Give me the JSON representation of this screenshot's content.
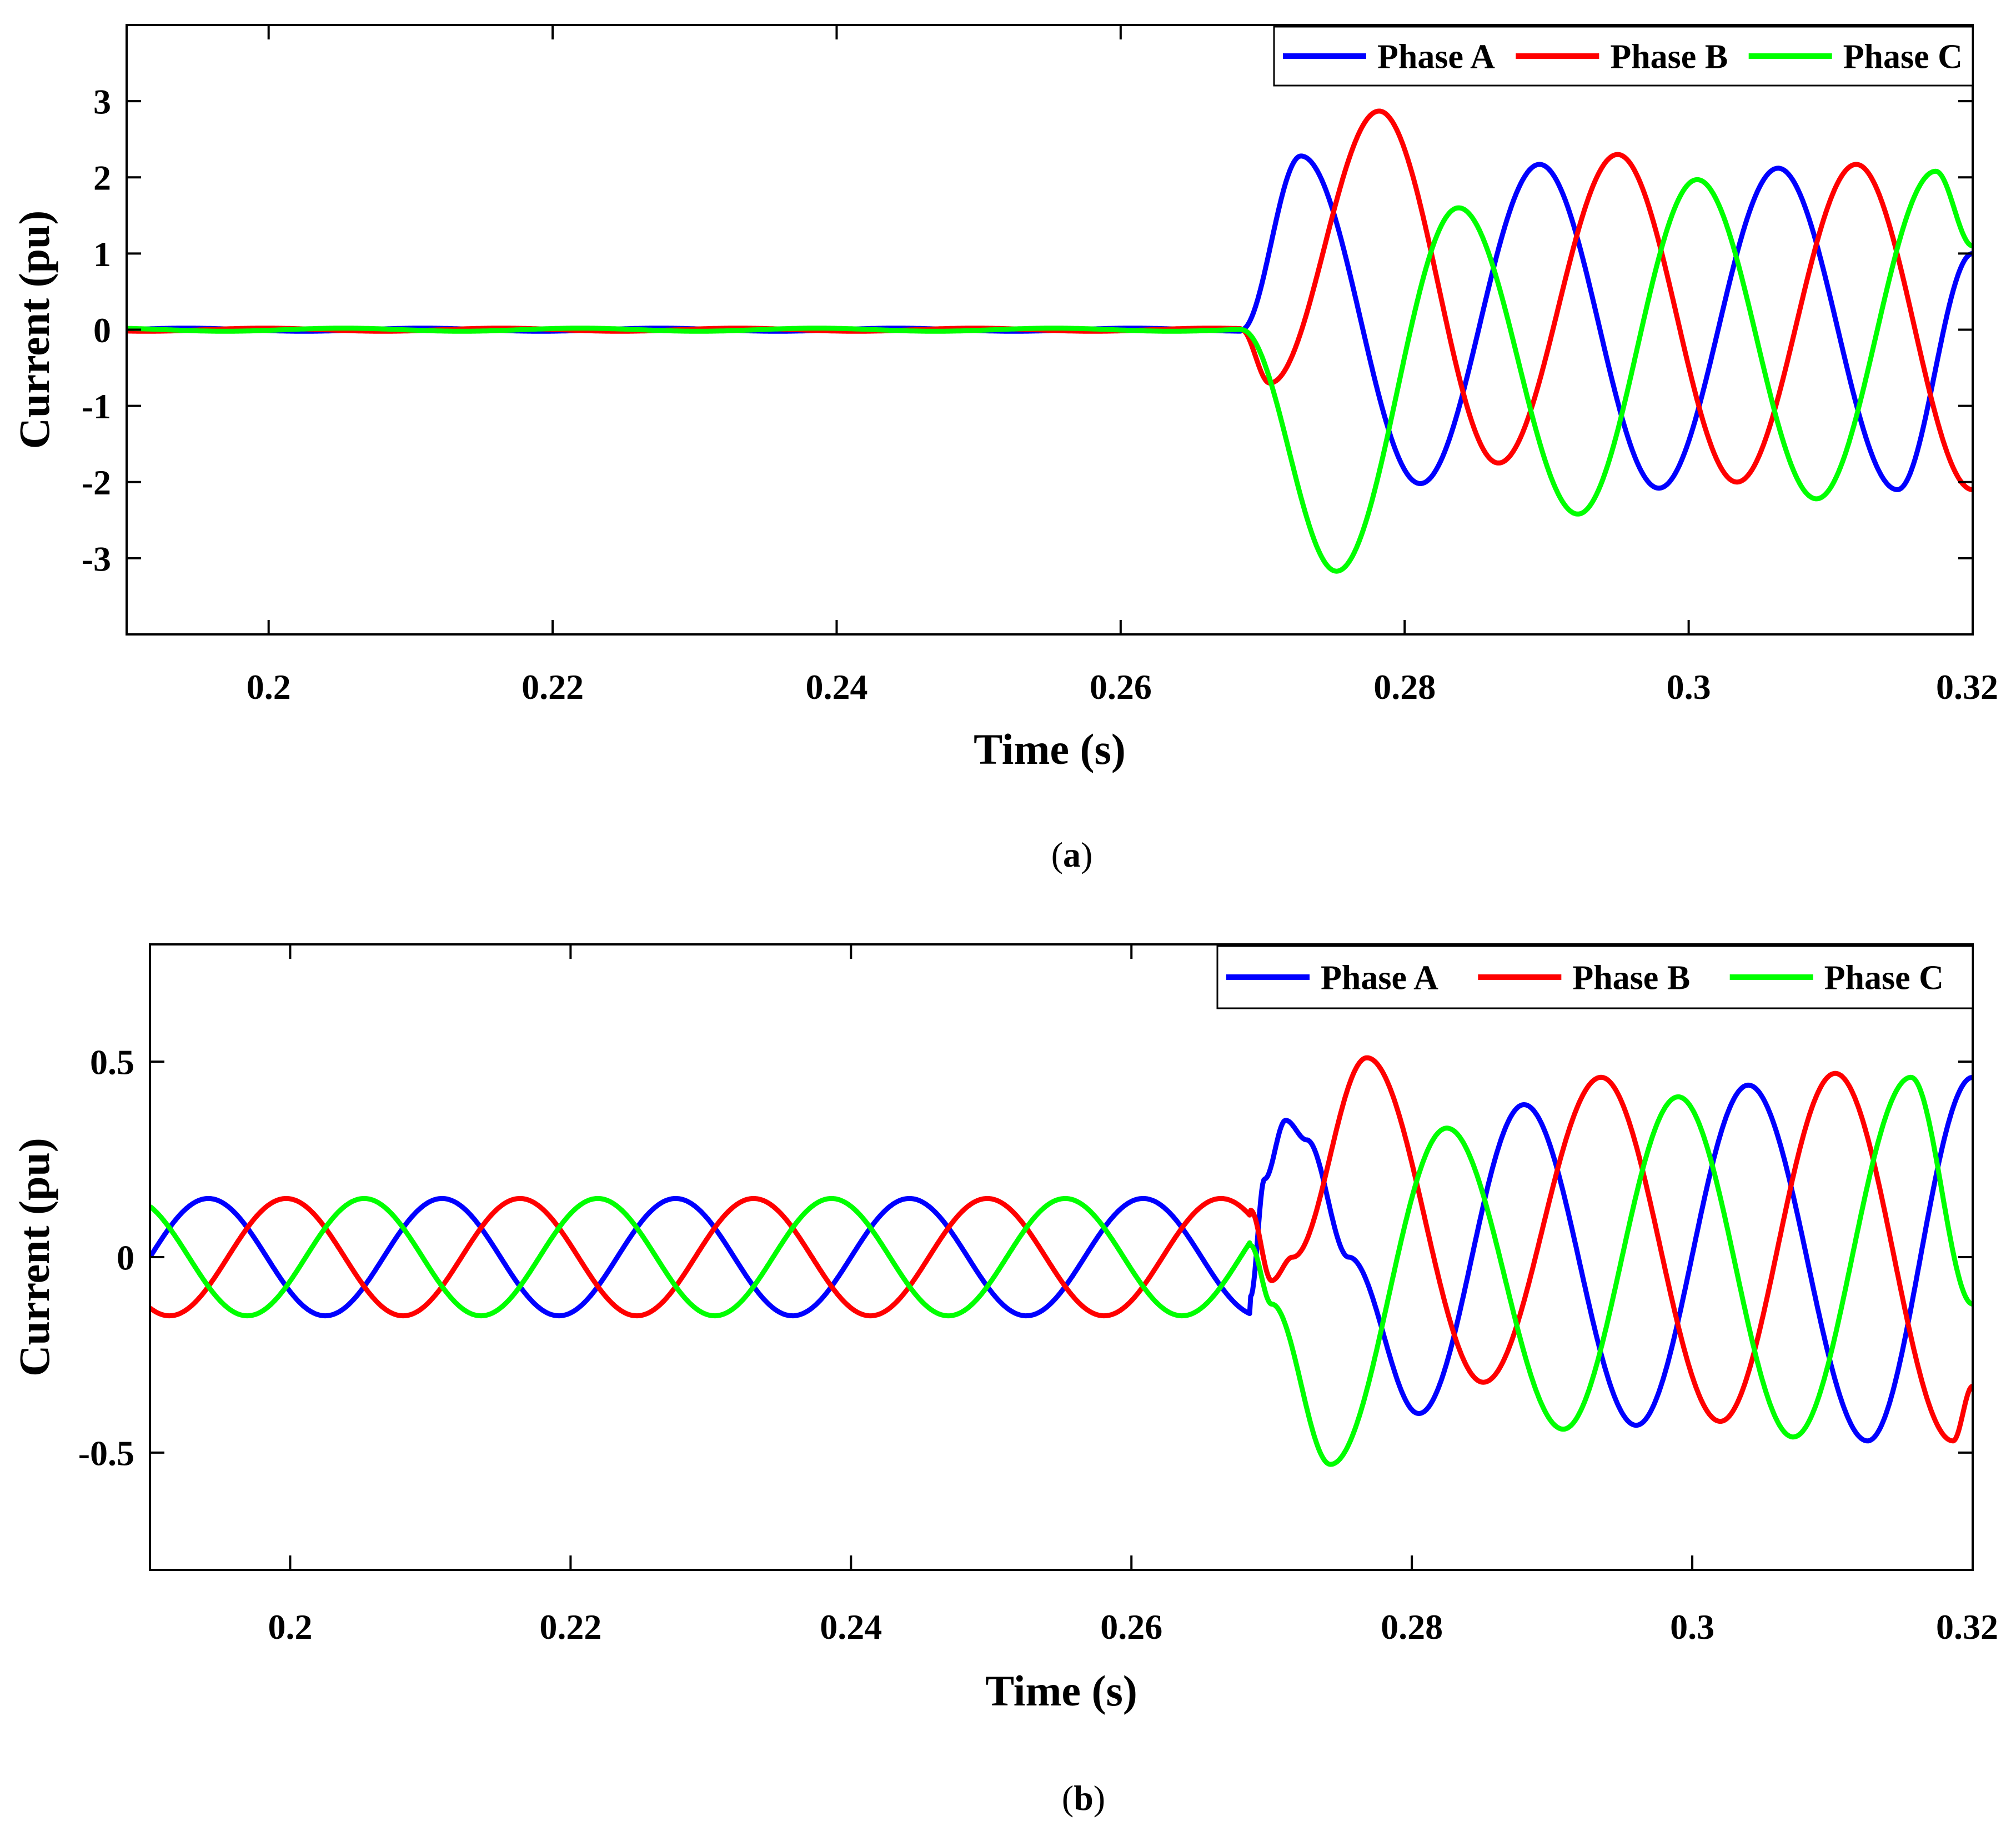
{
  "chart_data": [
    {
      "id": "a",
      "type": "line",
      "caption_open": "(",
      "caption_letter": "a",
      "caption_close": ")",
      "xlabel": "Time (s)",
      "ylabel": "Current (pu)",
      "xlim": [
        0.19,
        0.32
      ],
      "ylim": [
        -4,
        4
      ],
      "xticks": [
        0.2,
        0.22,
        0.24,
        0.26,
        0.28,
        0.3,
        0.32
      ],
      "xtick_labels": [
        "0.2",
        "0.22",
        "0.24",
        "0.26",
        "0.28",
        "0.3",
        "0.32"
      ],
      "yticks": [
        3,
        2,
        1,
        0,
        -1,
        -2,
        -3
      ],
      "ytick_labels": [
        "3",
        "2",
        "1",
        "0",
        "-1",
        "-2",
        "-3"
      ],
      "legend_position": "top-right",
      "fault_time": 0.2685,
      "frequency_hz": 60,
      "series": [
        {
          "name": "Phase A",
          "color": "#0000ff",
          "pre_fault_amplitude": 0.02,
          "pre_fault_phase_deg": 0,
          "post_fault_points": [
            [
              0.2685,
              0.0
            ],
            [
              0.2727,
              2.28
            ],
            [
              0.2811,
              -2.02
            ],
            [
              0.2895,
              2.17
            ],
            [
              0.2979,
              -2.08
            ],
            [
              0.3063,
              2.12
            ],
            [
              0.3147,
              -2.1
            ],
            [
              0.32,
              1.0
            ]
          ]
        },
        {
          "name": "Phase B",
          "color": "#ff0000",
          "pre_fault_amplitude": 0.02,
          "pre_fault_phase_deg": -120,
          "post_fault_points": [
            [
              0.2685,
              0.0
            ],
            [
              0.2705,
              -0.7
            ],
            [
              0.2782,
              2.87
            ],
            [
              0.2866,
              -1.75
            ],
            [
              0.295,
              2.3
            ],
            [
              0.3034,
              -2.0
            ],
            [
              0.3118,
              2.17
            ],
            [
              0.32,
              -2.1
            ]
          ]
        },
        {
          "name": "Phase C",
          "color": "#00ff00",
          "pre_fault_amplitude": 0.02,
          "pre_fault_phase_deg": 120,
          "post_fault_points": [
            [
              0.2685,
              0.0
            ],
            [
              0.2752,
              -3.17
            ],
            [
              0.2838,
              1.6
            ],
            [
              0.2922,
              -2.42
            ],
            [
              0.3006,
              1.97
            ],
            [
              0.309,
              -2.22
            ],
            [
              0.3174,
              2.08
            ],
            [
              0.32,
              1.1
            ]
          ]
        }
      ]
    },
    {
      "id": "b",
      "type": "line",
      "caption_open": "(",
      "caption_letter": "b",
      "caption_close": ")",
      "xlabel": "Time (s)",
      "ylabel": "Current (pu)",
      "xlim": [
        0.19,
        0.32
      ],
      "ylim": [
        -0.8,
        0.8
      ],
      "xticks": [
        0.2,
        0.22,
        0.24,
        0.26,
        0.28,
        0.3,
        0.32
      ],
      "xtick_labels": [
        "0.2",
        "0.22",
        "0.24",
        "0.26",
        "0.28",
        "0.3",
        "0.32"
      ],
      "yticks": [
        0.5,
        0,
        -0.5
      ],
      "ytick_labels": [
        "0.5",
        "0",
        "-0.5"
      ],
      "legend_position": "top-right",
      "fault_time": 0.2685,
      "frequency_hz": 60,
      "series": [
        {
          "name": "Phase A",
          "color": "#0000ff",
          "pre_fault_amplitude": 0.15,
          "pre_fault_phase_deg": 0,
          "post_fault_points": [
            [
              0.2685,
              -0.1
            ],
            [
              0.2695,
              0.2
            ],
            [
              0.271,
              0.35
            ],
            [
              0.2725,
              0.3
            ],
            [
              0.2755,
              0.0
            ],
            [
              0.2805,
              -0.4
            ],
            [
              0.288,
              0.39
            ],
            [
              0.296,
              -0.43
            ],
            [
              0.304,
              0.44
            ],
            [
              0.3125,
              -0.47
            ],
            [
              0.32,
              0.46
            ]
          ]
        },
        {
          "name": "Phase B",
          "color": "#ff0000",
          "pre_fault_amplitude": 0.15,
          "pre_fault_phase_deg": -120,
          "post_fault_points": [
            [
              0.2685,
              0.12
            ],
            [
              0.27,
              -0.06
            ],
            [
              0.2715,
              0.0
            ],
            [
              0.2768,
              0.51
            ],
            [
              0.2851,
              -0.32
            ],
            [
              0.2935,
              0.46
            ],
            [
              0.302,
              -0.42
            ],
            [
              0.3102,
              0.47
            ],
            [
              0.3186,
              -0.47
            ],
            [
              0.32,
              -0.33
            ]
          ]
        },
        {
          "name": "Phase C",
          "color": "#00ff00",
          "pre_fault_amplitude": 0.15,
          "pre_fault_phase_deg": 120,
          "post_fault_points": [
            [
              0.2685,
              0.03
            ],
            [
              0.27,
              -0.12
            ],
            [
              0.2742,
              -0.53
            ],
            [
              0.2825,
              0.33
            ],
            [
              0.2908,
              -0.44
            ],
            [
              0.299,
              0.41
            ],
            [
              0.3072,
              -0.46
            ],
            [
              0.3156,
              0.46
            ],
            [
              0.32,
              -0.12
            ]
          ]
        }
      ]
    }
  ]
}
